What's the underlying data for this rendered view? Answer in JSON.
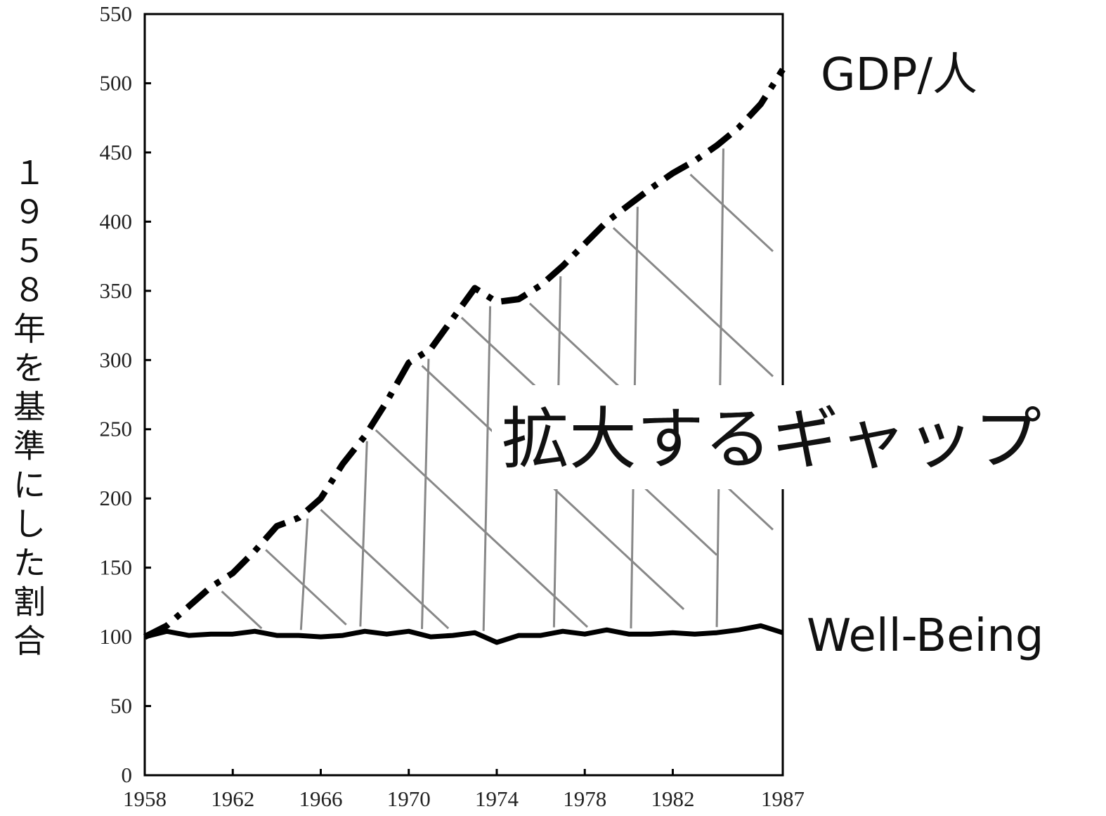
{
  "chart_data": {
    "type": "line",
    "ylabel": "１９５８年を基準にした割合",
    "y_ticks": [
      "0",
      "50",
      "100",
      "150",
      "200",
      "250",
      "300",
      "350",
      "400",
      "450",
      "500",
      "550"
    ],
    "x_ticks": [
      "1958",
      "1962",
      "1966",
      "1970",
      "1974",
      "1978",
      "1982",
      "1987"
    ],
    "ylim": [
      0,
      550
    ],
    "xlim": [
      1958,
      1987
    ],
    "grid": false,
    "annotation": "拡大するギャップ",
    "series": [
      {
        "name": "GDP/人",
        "style": "dash-dot",
        "color": "#000000",
        "x": [
          1958,
          1959,
          1960,
          1961,
          1962,
          1963,
          1964,
          1965,
          1966,
          1967,
          1968,
          1969,
          1970,
          1971,
          1972,
          1973,
          1974,
          1975,
          1976,
          1977,
          1978,
          1979,
          1980,
          1981,
          1982,
          1983,
          1984,
          1985,
          1986,
          1987
        ],
        "values": [
          100,
          108,
          122,
          136,
          146,
          162,
          180,
          186,
          200,
          225,
          245,
          270,
          298,
          308,
          330,
          352,
          342,
          344,
          354,
          368,
          384,
          400,
          412,
          424,
          435,
          444,
          455,
          468,
          485,
          510
        ]
      },
      {
        "name": "Well-Being",
        "style": "solid",
        "color": "#000000",
        "x": [
          1958,
          1959,
          1960,
          1961,
          1962,
          1963,
          1964,
          1965,
          1966,
          1967,
          1968,
          1969,
          1970,
          1971,
          1972,
          1973,
          1974,
          1975,
          1976,
          1977,
          1978,
          1979,
          1980,
          1981,
          1982,
          1983,
          1984,
          1985,
          1986,
          1987
        ],
        "values": [
          100,
          104,
          101,
          102,
          102,
          104,
          101,
          101,
          100,
          101,
          104,
          102,
          104,
          100,
          101,
          103,
          96,
          101,
          101,
          104,
          102,
          105,
          102,
          102,
          103,
          102,
          103,
          105,
          108,
          103
        ]
      }
    ]
  }
}
